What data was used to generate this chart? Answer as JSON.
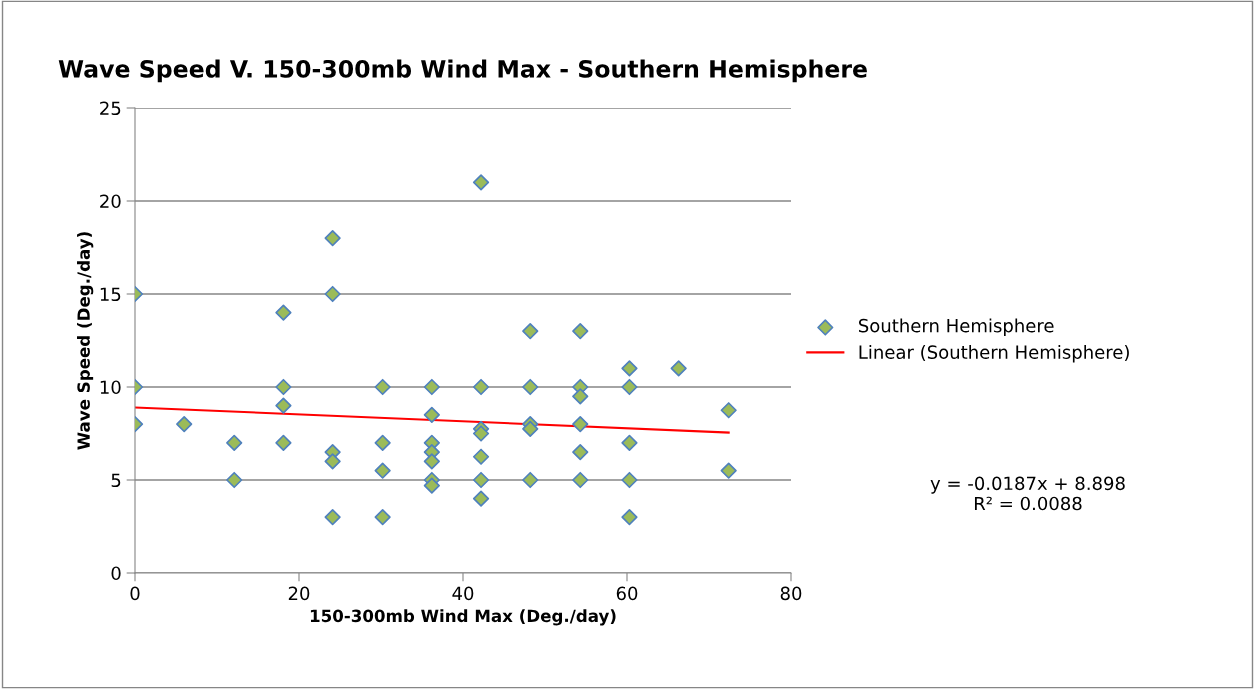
{
  "chart_data": {
    "type": "scatter",
    "title": "Wave Speed V. 150-300mb Wind Max - Southern Hemisphere",
    "xlabel": "150-300mb Wind Max (Deg./day)",
    "ylabel": "Wave Speed (Deg./day)",
    "series": [
      {
        "name": "Southern Hemisphere",
        "color": "#9bbb59",
        "marker": "diamond",
        "x": [
          0,
          0,
          0,
          6,
          12.1,
          12.1,
          18.1,
          18.1,
          18.1,
          18.1,
          24.1,
          24.1,
          24.1,
          24.1,
          24.1,
          30.2,
          30.2,
          30.2,
          30.2,
          36.2,
          36.2,
          36.2,
          36.2,
          36.2,
          36.2,
          36.2,
          42.2,
          42.2,
          42.2,
          42.2,
          42.2,
          42.2,
          42.2,
          48.2,
          48.2,
          48.2,
          48.2,
          48.2,
          54.3,
          54.3,
          54.3,
          54.3,
          54.3,
          54.3,
          60.3,
          60.3,
          60.3,
          60.3,
          60.3,
          66.3,
          72.4,
          72.4
        ],
        "values": [
          15,
          10,
          8,
          8,
          7,
          5,
          14,
          10,
          9,
          7,
          18,
          15,
          6.5,
          6,
          3,
          10,
          7,
          5.5,
          3,
          10,
          8.5,
          7,
          6.5,
          6,
          5,
          4.7,
          21,
          10,
          7.75,
          7.5,
          6.25,
          5,
          4,
          13,
          10,
          8,
          7.75,
          5,
          13,
          10,
          9.5,
          8,
          6.5,
          5,
          11,
          10,
          7,
          5,
          3,
          11,
          8.75,
          5.5
        ]
      },
      {
        "name": "Linear (Southern Hemisphere)",
        "type": "line",
        "color": "#ff0000",
        "marker": "none",
        "line_style": "solid",
        "x": [
          0,
          72.4
        ],
        "values": [
          8.9,
          7.55
        ]
      }
    ],
    "annotations": [
      "y = -0.0187x + 8.898\nR² = 0.0088"
    ],
    "xlim": [
      0,
      80
    ],
    "xticks": [
      0,
      20,
      40,
      60,
      80
    ],
    "ylim": [
      0,
      25
    ],
    "yticks": [
      0,
      5,
      10,
      15,
      20,
      25
    ],
    "grid": "y",
    "legend": "right"
  }
}
